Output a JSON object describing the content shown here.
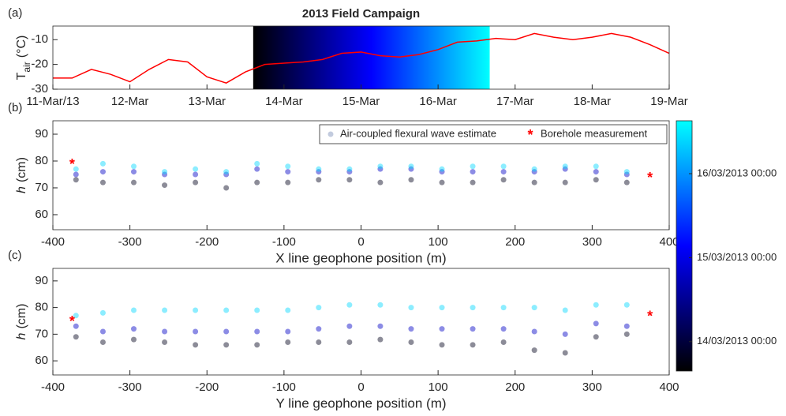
{
  "chart_data": [
    {
      "type": "line",
      "panel_label": "(a)",
      "title": "2013 Field Campaign",
      "ylabel": "T",
      "ylabel_sub": "air",
      "ylabel_unit": "(°C)",
      "x": [
        0,
        0.25,
        0.5,
        0.75,
        1,
        1.25,
        1.5,
        1.75,
        2,
        2.25,
        2.5,
        2.75,
        3,
        3.25,
        3.5,
        3.75,
        4,
        4.25,
        4.5,
        4.75,
        5,
        5.25,
        5.5,
        5.75,
        6,
        6.25,
        6.5,
        6.75,
        7,
        7.25,
        7.5,
        7.75,
        8
      ],
      "series": [
        {
          "color": "#ff0000",
          "values": [
            -25.5,
            -25.5,
            -22,
            -24,
            -27,
            -22,
            -18,
            -19,
            -25,
            -27.5,
            -23,
            -20,
            -19.5,
            -19,
            -18,
            -15.5,
            -15,
            -16.5,
            -17,
            -16,
            -14,
            -11,
            -10.5,
            -9.5,
            -10,
            -7.5,
            -9,
            -10,
            -9,
            -7.5,
            -9,
            -12,
            -15.5
          ]
        }
      ],
      "shade": [
        2.6,
        5.67
      ],
      "xlim": [
        0,
        8
      ],
      "ylim": [
        -30,
        -4.5
      ],
      "xticks": [
        {
          "value": 0,
          "label": "11-Mar/13"
        },
        {
          "value": 1,
          "label": "12-Mar"
        },
        {
          "value": 2,
          "label": "13-Mar"
        },
        {
          "value": 3,
          "label": "14-Mar"
        },
        {
          "value": 4,
          "label": "15-Mar"
        },
        {
          "value": 5,
          "label": "16-Mar"
        },
        {
          "value": 6,
          "label": "17-Mar"
        },
        {
          "value": 7,
          "label": "18-Mar"
        },
        {
          "value": 8,
          "label": "19-Mar"
        }
      ],
      "yticks": [
        -30,
        -20,
        -10
      ]
    },
    {
      "type": "scatter",
      "panel_label": "(b)",
      "xlabel": "X line geophone position (m)",
      "ylabel": "h",
      "ylabel_unit": "(cm)",
      "legend": "upper right",
      "series": [
        {
          "name": "Air-coupled flexural wave estimate",
          "color": "#9aa8c8",
          "x": [
            -370,
            -335,
            -295,
            -255,
            -215,
            -175,
            -135,
            -95,
            -55,
            -15,
            25,
            65,
            105,
            145,
            185,
            225,
            265,
            305,
            345,
            -370,
            -335,
            -295,
            -255,
            -215,
            -175,
            -135,
            -95,
            -55,
            -15,
            25,
            65,
            105,
            145,
            185,
            225,
            265,
            305,
            345,
            -370,
            -335,
            -295,
            -255,
            -215,
            -175,
            -135,
            -95,
            -55,
            -15,
            25,
            65,
            105,
            145,
            185,
            225,
            265,
            305,
            345
          ],
          "values": [
            73,
            72,
            72,
            71,
            72,
            70,
            72,
            72,
            73,
            73,
            72,
            73,
            72,
            72,
            73,
            72,
            72,
            73,
            72,
            75,
            76,
            76,
            75,
            75,
            75,
            77,
            76,
            76,
            76,
            77,
            77,
            76,
            76,
            76,
            76,
            77,
            76,
            75,
            77,
            79,
            78,
            76,
            77,
            76,
            79,
            78,
            77,
            77,
            78,
            78,
            77,
            78,
            78,
            77,
            78,
            78,
            76
          ],
          "time": [
            2.8,
            2.8,
            2.8,
            2.8,
            2.8,
            2.8,
            2.8,
            2.8,
            2.8,
            2.8,
            2.8,
            2.8,
            2.8,
            2.8,
            2.8,
            2.8,
            2.8,
            2.8,
            2.8,
            3.8,
            3.8,
            3.8,
            3.8,
            3.8,
            3.8,
            3.8,
            3.8,
            3.8,
            3.8,
            3.8,
            3.8,
            3.8,
            3.8,
            3.8,
            3.8,
            3.8,
            3.8,
            3.8,
            5.4,
            5.4,
            5.4,
            5.4,
            5.4,
            5.4,
            5.4,
            5.4,
            5.4,
            5.4,
            5.4,
            5.4,
            5.4,
            5.4,
            5.4,
            5.4,
            5.4,
            5.4,
            5.4
          ]
        },
        {
          "name": "Borehole measurement",
          "color": "#ff0000",
          "x": [
            -375,
            375
          ],
          "values": [
            79,
            74
          ]
        }
      ],
      "xlim": [
        -400,
        400
      ],
      "ylim": [
        54.4,
        95
      ],
      "xticks": [
        -400,
        -300,
        -200,
        -100,
        0,
        100,
        200,
        300,
        400
      ],
      "yticks": [
        60,
        70,
        80,
        90
      ]
    },
    {
      "type": "scatter",
      "panel_label": "(c)",
      "xlabel": "Y line geophone position (m)",
      "ylabel": "h",
      "ylabel_unit": "(cm)",
      "series": [
        {
          "x": [
            -370,
            -335,
            -295,
            -255,
            -215,
            -175,
            -135,
            -95,
            -55,
            -15,
            25,
            65,
            105,
            145,
            185,
            225,
            265,
            305,
            345,
            -370,
            -335,
            -295,
            -255,
            -215,
            -175,
            -135,
            -95,
            -55,
            -15,
            25,
            65,
            105,
            145,
            185,
            225,
            265,
            305,
            345,
            -370,
            -335,
            -295,
            -255,
            -215,
            -175,
            -135,
            -95,
            -55,
            -15,
            25,
            65,
            105,
            145,
            185,
            225,
            265,
            305,
            345
          ],
          "values": [
            69,
            67,
            68,
            67,
            66,
            66,
            66,
            67,
            67,
            67,
            68,
            67,
            66,
            66,
            67,
            64,
            63,
            69,
            70,
            73,
            71,
            72,
            71,
            71,
            71,
            71,
            71,
            72,
            73,
            73,
            72,
            72,
            72,
            72,
            71,
            70,
            74,
            73,
            77,
            78,
            79,
            79,
            79,
            79,
            79,
            79,
            80,
            81,
            81,
            80,
            80,
            80,
            80,
            80,
            79,
            81,
            81
          ],
          "time": [
            2.8,
            2.8,
            2.8,
            2.8,
            2.8,
            2.8,
            2.8,
            2.8,
            2.8,
            2.8,
            2.8,
            2.8,
            2.8,
            2.8,
            2.8,
            2.8,
            2.8,
            2.8,
            2.8,
            3.8,
            3.8,
            3.8,
            3.8,
            3.8,
            3.8,
            3.8,
            3.8,
            3.8,
            3.8,
            3.8,
            3.8,
            3.8,
            3.8,
            3.8,
            3.8,
            3.8,
            3.8,
            3.8,
            5.4,
            5.4,
            5.4,
            5.4,
            5.4,
            5.4,
            5.4,
            5.4,
            5.4,
            5.4,
            5.4,
            5.4,
            5.4,
            5.4,
            5.4,
            5.4,
            5.4,
            5.4,
            5.4
          ]
        },
        {
          "color": "#ff0000",
          "x": [
            -375,
            375
          ],
          "values": [
            75,
            77
          ]
        }
      ],
      "xlim": [
        -400,
        400
      ],
      "ylim": [
        54.7,
        94.7
      ],
      "xticks": [
        -400,
        -300,
        -200,
        -100,
        0,
        100,
        200,
        300,
        400
      ],
      "yticks": [
        60,
        70,
        80,
        90
      ],
      "colorbar": {
        "lim": [
          2.65,
          5.63
        ],
        "colors": [
          "#000000",
          "#0000ff",
          "#00ffff"
        ],
        "ticks": [
          {
            "value": 3,
            "label": "14/03/2013 00:00"
          },
          {
            "value": 4,
            "label": "15/03/2013 00:00"
          },
          {
            "value": 5,
            "label": "16/03/2013 00:00"
          }
        ]
      }
    }
  ]
}
